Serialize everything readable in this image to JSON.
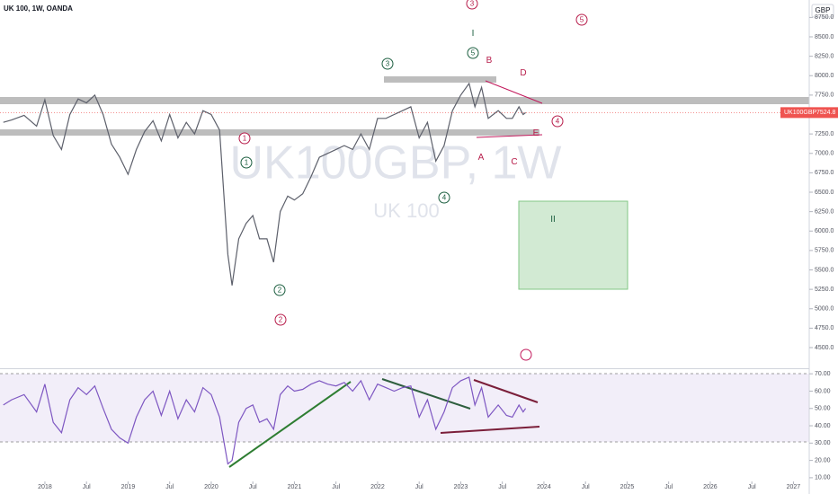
{
  "chart_data": [
    {
      "type": "line",
      "title": "UK 100, 1W, OANDA",
      "watermark": "UK100GBP, 1W",
      "watermark_sub": "UK 100",
      "currency": "GBP",
      "x": [
        2017.5,
        2017.6,
        2017.75,
        2017.9,
        2018.0,
        2018.1,
        2018.2,
        2018.3,
        2018.4,
        2018.5,
        2018.6,
        2018.7,
        2018.8,
        2018.9,
        2019.0,
        2019.1,
        2019.2,
        2019.3,
        2019.4,
        2019.5,
        2019.6,
        2019.7,
        2019.8,
        2019.9,
        2020.0,
        2020.1,
        2020.2,
        2020.25,
        2020.33,
        2020.42,
        2020.5,
        2020.58,
        2020.67,
        2020.75,
        2020.83,
        2020.92,
        2021.0,
        2021.1,
        2021.2,
        2021.3,
        2021.4,
        2021.5,
        2021.6,
        2021.7,
        2021.8,
        2021.9,
        2022.0,
        2022.1,
        2022.2,
        2022.3,
        2022.4,
        2022.5,
        2022.6,
        2022.7,
        2022.8,
        2022.9,
        2023.0,
        2023.1,
        2023.17,
        2023.25,
        2023.33,
        2023.45,
        2023.55,
        2023.62,
        2023.7,
        2023.75,
        2023.78
      ],
      "series": [
        {
          "name": "UK100GBP",
          "color": "#5d606b",
          "values": [
            7400,
            7430,
            7490,
            7350,
            7690,
            7230,
            7050,
            7500,
            7700,
            7650,
            7750,
            7500,
            7120,
            6950,
            6730,
            7050,
            7280,
            7420,
            7160,
            7500,
            7200,
            7400,
            7250,
            7550,
            7500,
            7300,
            5700,
            5300,
            5900,
            6100,
            6200,
            5900,
            5900,
            5600,
            6250,
            6450,
            6400,
            6480,
            6700,
            6950,
            7000,
            7050,
            7100,
            7050,
            7250,
            7050,
            7450,
            7450,
            7500,
            7550,
            7600,
            7200,
            7400,
            6900,
            7100,
            7550,
            7750,
            7900,
            7600,
            7850,
            7450,
            7550,
            7450,
            7450,
            7600,
            7500,
            7524.8
          ]
        }
      ],
      "ylim": [
        4292,
        8974
      ],
      "yticks": [
        {
          "value": 4500,
          "label": "4500.0"
        },
        {
          "value": 4750,
          "label": "4750.0"
        },
        {
          "value": 5000,
          "label": "5000.0"
        },
        {
          "value": 5250,
          "label": "5250.0"
        },
        {
          "value": 5500,
          "label": "5500.0"
        },
        {
          "value": 5750,
          "label": "5750.0"
        },
        {
          "value": 6000,
          "label": "6000.0"
        },
        {
          "value": 6250,
          "label": "6250.0"
        },
        {
          "value": 6500,
          "label": "6500.0"
        },
        {
          "value": 6750,
          "label": "6750.0"
        },
        {
          "value": 7000,
          "label": "7000.0"
        },
        {
          "value": 7250,
          "label": "7250.0"
        },
        {
          "value": 7750,
          "label": "7750.0"
        },
        {
          "value": 8000,
          "label": "8000.0"
        },
        {
          "value": 8250,
          "label": "8250.0"
        },
        {
          "value": 8500,
          "label": "8500.0"
        },
        {
          "value": 8750,
          "label": "8750.0"
        }
      ],
      "xlim": [
        2017.46,
        2027.19
      ],
      "xticks": [
        {
          "value": 2018,
          "label": "2018"
        },
        {
          "value": 2018.5,
          "label": "Jul"
        },
        {
          "value": 2019,
          "label": "2019"
        },
        {
          "value": 2019.5,
          "label": "Jul"
        },
        {
          "value": 2020,
          "label": "2020"
        },
        {
          "value": 2020.5,
          "label": "Jul"
        },
        {
          "value": 2021,
          "label": "2021"
        },
        {
          "value": 2021.5,
          "label": "Jul"
        },
        {
          "value": 2022,
          "label": "2022"
        },
        {
          "value": 2022.5,
          "label": "Jul"
        },
        {
          "value": 2023,
          "label": "2023"
        },
        {
          "value": 2023.5,
          "label": "Jul"
        },
        {
          "value": 2024,
          "label": "2024"
        },
        {
          "value": 2024.5,
          "label": "Jul"
        },
        {
          "value": 2025,
          "label": "2025"
        },
        {
          "value": 2025.5,
          "label": "Jul"
        },
        {
          "value": 2026,
          "label": "2026"
        },
        {
          "value": 2026.5,
          "label": "Jul"
        },
        {
          "value": 2027,
          "label": "2027"
        }
      ],
      "annotations": [
        "3",
        "5",
        "I",
        "5",
        "3",
        "B",
        "D",
        "4",
        "E",
        "1",
        "1",
        "A",
        "C",
        "4",
        "II",
        "2",
        "2"
      ]
    },
    {
      "type": "line",
      "x": [
        2017.5,
        2017.6,
        2017.75,
        2017.9,
        2018.0,
        2018.1,
        2018.2,
        2018.3,
        2018.4,
        2018.5,
        2018.6,
        2018.7,
        2018.8,
        2018.9,
        2019.0,
        2019.1,
        2019.2,
        2019.3,
        2019.4,
        2019.5,
        2019.6,
        2019.7,
        2019.8,
        2019.9,
        2020.0,
        2020.1,
        2020.2,
        2020.25,
        2020.33,
        2020.42,
        2020.5,
        2020.58,
        2020.67,
        2020.75,
        2020.83,
        2020.92,
        2021.0,
        2021.1,
        2021.2,
        2021.3,
        2021.4,
        2021.5,
        2021.6,
        2021.7,
        2021.8,
        2021.9,
        2022.0,
        2022.1,
        2022.2,
        2022.3,
        2022.4,
        2022.5,
        2022.6,
        2022.7,
        2022.8,
        2022.9,
        2023.0,
        2023.1,
        2023.17,
        2023.25,
        2023.33,
        2023.45,
        2023.55,
        2023.62,
        2023.7,
        2023.75,
        2023.78
      ],
      "series": [
        {
          "color": "#7e57c2",
          "values": [
            52,
            55,
            58,
            48,
            64,
            42,
            36,
            55,
            62,
            58,
            63,
            50,
            38,
            33,
            30,
            45,
            55,
            60,
            46,
            60,
            44,
            55,
            48,
            62,
            58,
            45,
            18,
            20,
            42,
            50,
            52,
            42,
            44,
            38,
            58,
            63,
            60,
            61,
            64,
            66,
            64,
            63,
            65,
            60,
            66,
            55,
            64,
            62,
            60,
            62,
            63,
            45,
            55,
            38,
            48,
            62,
            66,
            68,
            52,
            62,
            45,
            52,
            46,
            45,
            52,
            48,
            50
          ]
        }
      ],
      "ylim": [
        5.8,
        73.2
      ],
      "yticks": [
        {
          "value": 10,
          "label": "10.00"
        },
        {
          "value": 20,
          "label": "20.00"
        },
        {
          "value": 30,
          "label": "30.00"
        },
        {
          "value": 40,
          "label": "40.00"
        },
        {
          "value": 50,
          "label": "50.00"
        },
        {
          "value": 60,
          "label": "60.00"
        },
        {
          "value": 70,
          "label": "70.00"
        }
      ]
    }
  ]
}
